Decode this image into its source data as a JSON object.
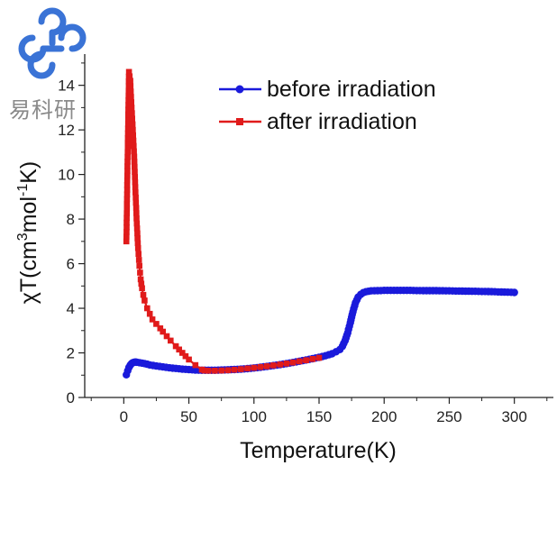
{
  "watermark": {
    "text": "易科研",
    "color": "#3a73d6"
  },
  "chart_data": {
    "type": "line",
    "xlabel": "Temperature(K)",
    "ylabel_parts": [
      "χT(cm",
      "3",
      "mol",
      "-1",
      "K)"
    ],
    "xlim": [
      -30,
      330
    ],
    "ylim": [
      0,
      15
    ],
    "xticks": [
      0,
      50,
      100,
      150,
      200,
      250,
      300
    ],
    "yticks": [
      0,
      2,
      4,
      6,
      8,
      10,
      12,
      14
    ],
    "grid": false,
    "legend_position": "top-right",
    "series": [
      {
        "name": "before irradiation",
        "color": "#1a1adb",
        "marker": "circle",
        "x": [
          2,
          3,
          4,
          5,
          6,
          7,
          8,
          9,
          10,
          12,
          14,
          16,
          18,
          20,
          25,
          30,
          35,
          40,
          45,
          50,
          55,
          60,
          65,
          70,
          75,
          80,
          90,
          100,
          110,
          120,
          130,
          140,
          150,
          155,
          160,
          163,
          166,
          168,
          170,
          172,
          174,
          176,
          178,
          180,
          182,
          184,
          186,
          188,
          190,
          195,
          200,
          210,
          220,
          230,
          240,
          250,
          260,
          270,
          280,
          290,
          300
        ],
        "y": [
          1.02,
          1.2,
          1.35,
          1.45,
          1.52,
          1.56,
          1.58,
          1.59,
          1.58,
          1.56,
          1.54,
          1.52,
          1.49,
          1.46,
          1.41,
          1.37,
          1.33,
          1.3,
          1.27,
          1.25,
          1.23,
          1.22,
          1.22,
          1.22,
          1.23,
          1.24,
          1.27,
          1.32,
          1.39,
          1.47,
          1.57,
          1.68,
          1.8,
          1.87,
          1.96,
          2.05,
          2.15,
          2.3,
          2.55,
          2.9,
          3.35,
          3.85,
          4.25,
          4.5,
          4.62,
          4.7,
          4.74,
          4.76,
          4.78,
          4.79,
          4.8,
          4.8,
          4.8,
          4.79,
          4.79,
          4.78,
          4.77,
          4.76,
          4.75,
          4.73,
          4.71
        ]
      },
      {
        "name": "after irradiation",
        "color": "#e01b1b",
        "marker": "square",
        "x": [
          2,
          3,
          4,
          5,
          6,
          7,
          8,
          9,
          10,
          11,
          12,
          13,
          14,
          15,
          16,
          18,
          20,
          22,
          25,
          28,
          30,
          33,
          36,
          40,
          45,
          50,
          55,
          60,
          62,
          65,
          70,
          80,
          90,
          100,
          110,
          120,
          130,
          140,
          150
        ],
        "y": [
          7.0,
          11.0,
          14.6,
          14.2,
          13.0,
          12.0,
          10.8,
          9.2,
          7.8,
          6.7,
          5.9,
          5.3,
          4.9,
          4.6,
          4.35,
          4.0,
          3.75,
          3.5,
          3.3,
          3.1,
          2.95,
          2.75,
          2.55,
          2.3,
          2.0,
          1.7,
          1.45,
          1.25,
          1.21,
          1.2,
          1.2,
          1.22,
          1.27,
          1.33,
          1.4,
          1.48,
          1.57,
          1.67,
          1.78
        ]
      }
    ]
  }
}
